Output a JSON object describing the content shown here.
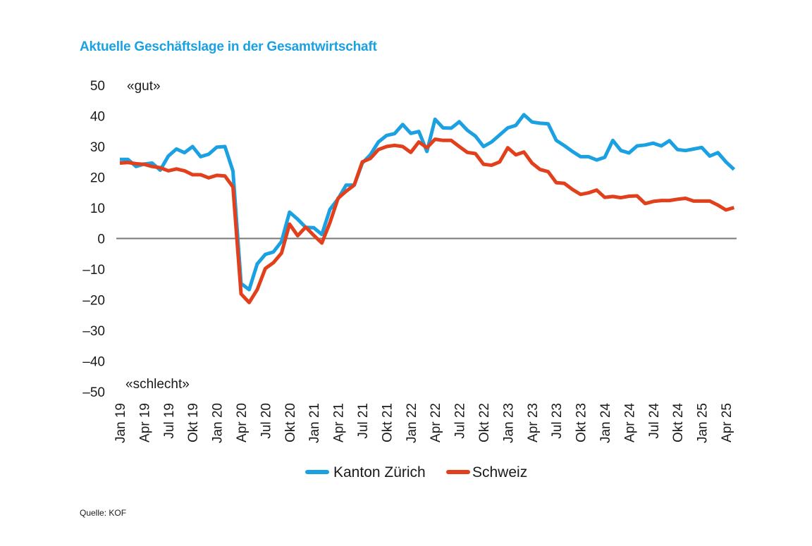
{
  "chart_data": {
    "type": "line",
    "title": "Aktuelle Geschäftslage in der Gesamtwirtschaft",
    "source": "Quelle: KOF",
    "xlabel": "",
    "ylabel": "",
    "ylim": [
      -50,
      50
    ],
    "yticks": [
      50,
      40,
      30,
      20,
      10,
      0,
      -10,
      -20,
      -30,
      -40,
      -50
    ],
    "ytick_labels": [
      "50",
      "40",
      "30",
      "20",
      "10",
      "0",
      "–10",
      "–20",
      "–30",
      "–40",
      "–50"
    ],
    "annotations": {
      "top": "«gut»",
      "bottom": "«schlecht»"
    },
    "x_start": "Jan 19",
    "x_interval": "monthly",
    "xtick_labels": [
      "Jan 19",
      "Apr 19",
      "Jul 19",
      "Okt 19",
      "Jan 20",
      "Apr 20",
      "Jul 20",
      "Okt 20",
      "Jan 21",
      "Apr 21",
      "Jul 21",
      "Okt 21",
      "Jan 22",
      "Apr 22",
      "Jul 22",
      "Okt 22",
      "Jan 23",
      "Apr 23",
      "Jul 23",
      "Okt 23",
      "Jan 24",
      "Apr 24",
      "Jul 24",
      "Okt 24",
      "Jan 25",
      "Apr 25"
    ],
    "xtick_every_months": 3,
    "grid": false,
    "zero_line": true,
    "legend_position": "bottom-center",
    "series": [
      {
        "name": "Kanton Zürich",
        "color": "#1ba1e2",
        "values": [
          25.8,
          25.8,
          23.5,
          24.3,
          24.6,
          22.3,
          26.9,
          29.2,
          28.0,
          30.0,
          26.7,
          27.5,
          29.8,
          30.0,
          22.0,
          -14.7,
          -16.7,
          -8.3,
          -5.2,
          -4.4,
          -1.0,
          8.6,
          6.3,
          3.6,
          3.5,
          1.3,
          9.5,
          12.9,
          17.4,
          17.4,
          24.6,
          27.3,
          31.5,
          33.6,
          34.2,
          37.2,
          34.3,
          34.9,
          28.4,
          38.9,
          36.1,
          36.0,
          38.1,
          35.3,
          33.4,
          30.0,
          31.5,
          33.8,
          36.1,
          36.9,
          40.4,
          38.0,
          37.6,
          37.4,
          32.0,
          30.3,
          28.4,
          26.7,
          26.7,
          25.6,
          26.5,
          32.0,
          28.7,
          27.9,
          30.2,
          30.5,
          31.1,
          30.2,
          31.9,
          29.0,
          28.7,
          29.2,
          29.7,
          26.9,
          28.0,
          25.0,
          22.5
        ]
      },
      {
        "name": "Schweiz",
        "color": "#e2401c",
        "values": [
          24.6,
          24.8,
          24.4,
          24.2,
          23.5,
          23.1,
          22.1,
          22.7,
          22.1,
          20.8,
          20.8,
          19.8,
          20.6,
          20.4,
          16.8,
          -18.1,
          -20.9,
          -16.7,
          -9.8,
          -7.9,
          -4.8,
          4.7,
          0.9,
          3.7,
          1.0,
          -1.5,
          5.2,
          13.1,
          15.4,
          17.4,
          25.0,
          26.1,
          29.0,
          30.0,
          30.4,
          30.0,
          28.1,
          31.5,
          29.6,
          32.4,
          32.0,
          32.0,
          30.0,
          28.1,
          27.7,
          24.2,
          23.9,
          25.0,
          29.6,
          27.3,
          28.2,
          24.6,
          22.5,
          21.8,
          18.2,
          18.0,
          16.0,
          14.4,
          14.9,
          15.8,
          13.4,
          13.7,
          13.3,
          13.8,
          13.9,
          11.4,
          12.1,
          12.4,
          12.4,
          12.8,
          13.1,
          12.2,
          12.2,
          12.2,
          10.9,
          9.3,
          10.1
        ]
      }
    ]
  }
}
